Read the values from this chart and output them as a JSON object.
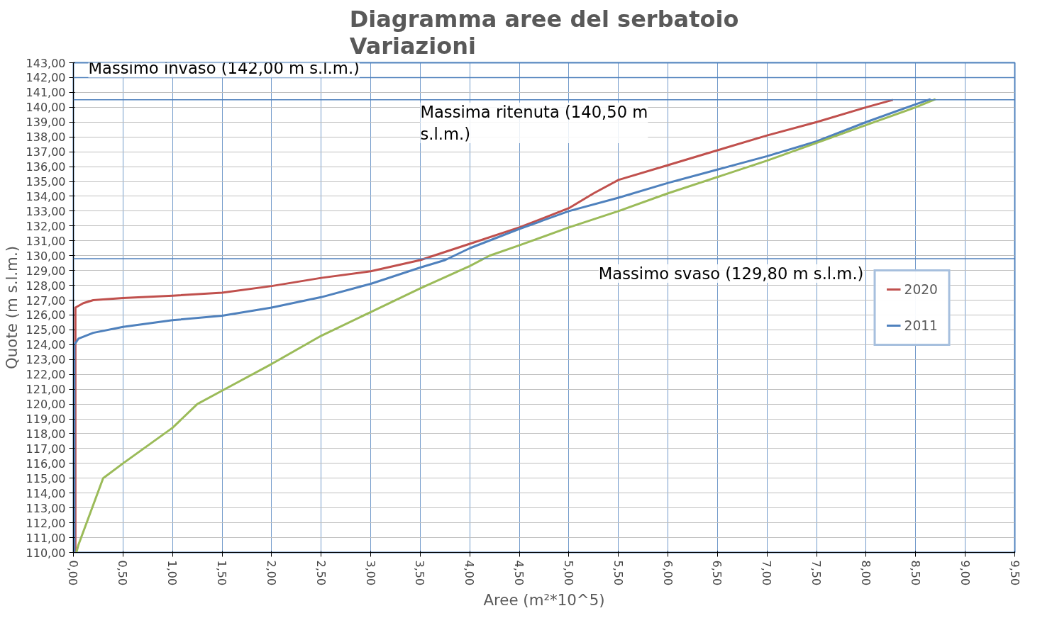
{
  "chart_data": {
    "type": "line",
    "title": "Diagramma aree del serbatoio\nVariazioni",
    "xlabel": "Aree (m²*10^5)",
    "ylabel": "Quote (m s.l.m.)",
    "xlim": [
      0,
      9.5
    ],
    "ylim": [
      110,
      143
    ],
    "xticks": [
      {
        "value": 0,
        "label": "0,00"
      },
      {
        "value": 0.5,
        "label": "0,50"
      },
      {
        "value": 1,
        "label": "1,00"
      },
      {
        "value": 1.5,
        "label": "1,50"
      },
      {
        "value": 2,
        "label": "2,00"
      },
      {
        "value": 2.5,
        "label": "2,50"
      },
      {
        "value": 3,
        "label": "3,00"
      },
      {
        "value": 3.5,
        "label": "3,50"
      },
      {
        "value": 4,
        "label": "4,00"
      },
      {
        "value": 4.5,
        "label": "4,50"
      },
      {
        "value": 5,
        "label": "5,00"
      },
      {
        "value": 5.5,
        "label": "5,50"
      },
      {
        "value": 6,
        "label": "6,00"
      },
      {
        "value": 6.5,
        "label": "6,50"
      },
      {
        "value": 7,
        "label": "7,00"
      },
      {
        "value": 7.5,
        "label": "7,50"
      },
      {
        "value": 8,
        "label": "8,00"
      },
      {
        "value": 8.5,
        "label": "8,50"
      },
      {
        "value": 9,
        "label": "9,00"
      },
      {
        "value": 9.5,
        "label": "9,50"
      }
    ],
    "yticks": [
      {
        "value": 110,
        "label": "110,00"
      },
      {
        "value": 111,
        "label": "111,00"
      },
      {
        "value": 112,
        "label": "112,00"
      },
      {
        "value": 113,
        "label": "113,00"
      },
      {
        "value": 114,
        "label": "114,00"
      },
      {
        "value": 115,
        "label": "115,00"
      },
      {
        "value": 116,
        "label": "116,00"
      },
      {
        "value": 117,
        "label": "117,00"
      },
      {
        "value": 118,
        "label": "118,00"
      },
      {
        "value": 119,
        "label": "119,00"
      },
      {
        "value": 120,
        "label": "120,00"
      },
      {
        "value": 121,
        "label": "121,00"
      },
      {
        "value": 122,
        "label": "122,00"
      },
      {
        "value": 123,
        "label": "123,00"
      },
      {
        "value": 124,
        "label": "124,00"
      },
      {
        "value": 125,
        "label": "125,00"
      },
      {
        "value": 126,
        "label": "126,00"
      },
      {
        "value": 127,
        "label": "127,00"
      },
      {
        "value": 128,
        "label": "128,00"
      },
      {
        "value": 129,
        "label": "129,00"
      },
      {
        "value": 130,
        "label": "130,00"
      },
      {
        "value": 131,
        "label": "131,00"
      },
      {
        "value": 132,
        "label": "132,00"
      },
      {
        "value": 133,
        "label": "133,00"
      },
      {
        "value": 134,
        "label": "134,00"
      },
      {
        "value": 135,
        "label": "135,00"
      },
      {
        "value": 136,
        "label": "136,00"
      },
      {
        "value": 137,
        "label": "137,00"
      },
      {
        "value": 138,
        "label": "138,00"
      },
      {
        "value": 139,
        "label": "139,00"
      },
      {
        "value": 140,
        "label": "140,00"
      },
      {
        "value": 141,
        "label": "141,00"
      },
      {
        "value": 142,
        "label": "142,00"
      },
      {
        "value": 143,
        "label": "143,00"
      }
    ],
    "grid": true,
    "legend": "right",
    "line_style": "solid",
    "marker": "none",
    "series": [
      {
        "name": "2020",
        "color": "#c0504d",
        "x": [
          0.02,
          0.02,
          0.1,
          0.2,
          0.5,
          1.0,
          1.5,
          2.0,
          2.5,
          3.0,
          3.5,
          4.0,
          4.5,
          5.0,
          5.25,
          5.5,
          6.0,
          6.5,
          7.0,
          7.5,
          8.0,
          8.27
        ],
        "values": [
          110,
          126.5,
          126.8,
          127.0,
          127.15,
          127.3,
          127.5,
          127.95,
          128.5,
          128.95,
          129.7,
          130.8,
          131.9,
          133.2,
          134.2,
          135.1,
          136.1,
          137.1,
          138.1,
          139.0,
          140.0,
          140.5
        ]
      },
      {
        "name": "2011",
        "color": "#4f81bd",
        "x": [
          0.01,
          0.01,
          0.05,
          0.2,
          0.5,
          1.0,
          1.5,
          2.0,
          2.5,
          3.0,
          3.5,
          3.75,
          4.0,
          4.5,
          5.0,
          5.5,
          6.0,
          6.5,
          7.0,
          7.5,
          8.0,
          8.5,
          8.65
        ],
        "values": [
          110,
          124.0,
          124.4,
          124.8,
          125.2,
          125.65,
          125.95,
          126.5,
          127.2,
          128.1,
          129.2,
          129.7,
          130.5,
          131.8,
          133.0,
          133.9,
          134.9,
          135.8,
          136.7,
          137.7,
          139.0,
          140.2,
          140.55
        ]
      },
      {
        "color": "#9bbb59",
        "x": [
          0.03,
          0.05,
          0.3,
          0.5,
          1.0,
          1.25,
          1.5,
          2.0,
          2.5,
          3.0,
          3.5,
          4.0,
          4.2,
          4.5,
          5.0,
          5.5,
          6.0,
          6.5,
          7.0,
          7.5,
          8.0,
          8.5,
          8.7
        ],
        "values": [
          110,
          110.5,
          115.0,
          116.0,
          118.4,
          120.0,
          120.9,
          122.7,
          124.6,
          126.2,
          127.8,
          129.3,
          130.0,
          130.7,
          131.9,
          133.0,
          134.2,
          135.3,
          136.4,
          137.6,
          138.8,
          140.0,
          140.55
        ]
      }
    ],
    "ref_lines": [
      {
        "axis": "y",
        "value": 142,
        "label": "Massimo invaso (142,00 m s.l.m.)",
        "color": "#4f81bd"
      },
      {
        "axis": "y",
        "value": 140.5,
        "label": "Massima ritenuta (140,50 m\ns.l.m.)",
        "color": "#4f81bd"
      },
      {
        "axis": "y",
        "value": 129.8,
        "label": "Massimo svaso (129,80 m s.l.m.)",
        "color": "#4f81bd"
      }
    ]
  }
}
